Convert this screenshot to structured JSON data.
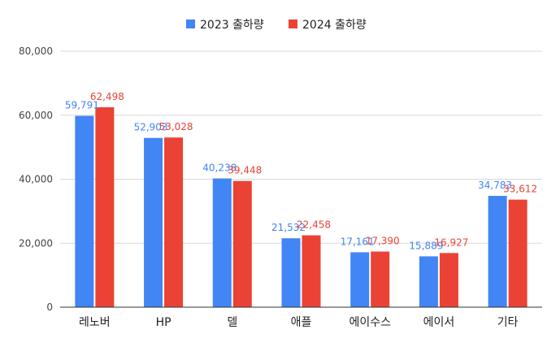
{
  "chart_data": {
    "type": "bar",
    "title": "",
    "xlabel": "",
    "ylabel": "",
    "categories": [
      "레노버",
      "HP",
      "델",
      "애플",
      "에이수스",
      "에이서",
      "기타"
    ],
    "series": [
      {
        "name": "2023 출하량",
        "color": "#4285f4",
        "values": [
          59791,
          52903,
          40238,
          21532,
          17161,
          15889,
          34783
        ],
        "labels": [
          "59,791",
          "52,903",
          "40,238",
          "21,532",
          "17,161",
          "15,889",
          "34,783"
        ]
      },
      {
        "name": "2024 출하량",
        "color": "#ea4335",
        "values": [
          62498,
          53028,
          39448,
          22458,
          17390,
          16927,
          33612
        ],
        "labels": [
          "62,498",
          "53,028",
          "39,448",
          "22,458",
          "17,390",
          "16,927",
          "33,612"
        ]
      }
    ],
    "ylim": [
      0,
      80000
    ],
    "yticks": [
      0,
      20000,
      40000,
      60000,
      80000
    ],
    "ytick_labels": [
      "0",
      "20,000",
      "40,000",
      "60,000",
      "80,000"
    ],
    "grid": true,
    "legend_position": "top-center"
  }
}
